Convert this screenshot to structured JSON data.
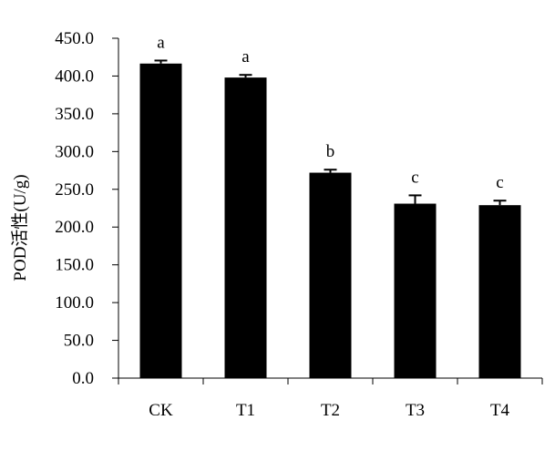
{
  "chart_data": {
    "type": "bar",
    "title": "",
    "xlabel": "",
    "ylabel": "POD活性(U/g)",
    "categories": [
      "CK",
      "T1",
      "T2",
      "T3",
      "T4"
    ],
    "values": [
      416.5,
      398.0,
      272.0,
      231.0,
      229.0
    ],
    "error": [
      4.0,
      3.5,
      4.0,
      11.0,
      6.0
    ],
    "significance": [
      "a",
      "a",
      "b",
      "c",
      "c"
    ],
    "ylim": [
      0,
      450
    ],
    "yticks": [
      "0.0",
      "50.0",
      "100.0",
      "150.0",
      "200.0",
      "250.0",
      "300.0",
      "350.0",
      "400.0",
      "450.0"
    ],
    "ytick_values": [
      0,
      50,
      100,
      150,
      200,
      250,
      300,
      350,
      400,
      450
    ],
    "grid": false,
    "legend": "none",
    "bar_color": "#000000"
  }
}
